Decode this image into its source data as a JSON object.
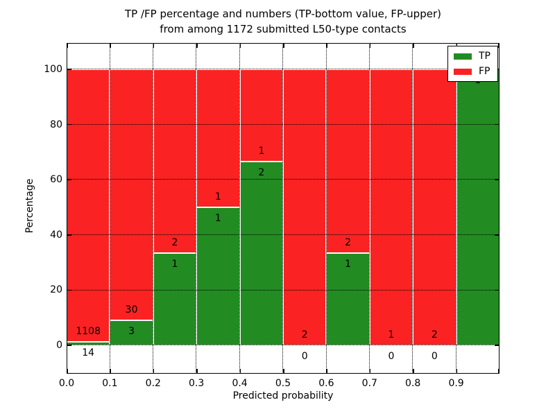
{
  "figure": {
    "title_line1": "TP /FP percentage and numbers (TP-bottom value, FP-upper)",
    "title_line2": "from among 1172 submitted L50-type contacts"
  },
  "chart_data": {
    "type": "bar",
    "stacked": true,
    "title": "TP /FP percentage and numbers (TP-bottom value, FP-upper) from among 1172 submitted L50-type contacts",
    "xlabel": "Predicted probability",
    "ylabel": "Percentage",
    "total_contacts": 1172,
    "grid": "dotted",
    "x_tick_labels": [
      "0.0",
      "0.1",
      "0.2",
      "0.3",
      "0.4",
      "0.5",
      "0.6",
      "0.7",
      "0.8",
      "0.9"
    ],
    "y_tick_values": [
      0,
      20,
      40,
      60,
      80,
      100
    ],
    "y_tick_labels": [
      "0",
      "20",
      "40",
      "60",
      "80",
      "100"
    ],
    "xlim": [
      0.0,
      1.0
    ],
    "ylim_pct": [
      0,
      100
    ],
    "series_colors": {
      "tp": "#228b22",
      "fp": "#fa2222"
    },
    "legend": {
      "position": "upper right",
      "items": [
        {
          "label": "TP",
          "color": "#228b22"
        },
        {
          "label": "FP",
          "color": "#fa2222"
        }
      ]
    },
    "bins": [
      {
        "x_range": [
          0.0,
          0.1
        ],
        "tp_count": 14,
        "fp_count": 1108,
        "tp_pct": 1.25,
        "fp_pct": 98.75,
        "tp_label": "14",
        "fp_label": "1108"
      },
      {
        "x_range": [
          0.1,
          0.2
        ],
        "tp_count": 3,
        "fp_count": 30,
        "tp_pct": 9.09,
        "fp_pct": 90.91,
        "tp_label": "3",
        "fp_label": "30"
      },
      {
        "x_range": [
          0.2,
          0.3
        ],
        "tp_count": 1,
        "fp_count": 2,
        "tp_pct": 33.33,
        "fp_pct": 66.67,
        "tp_label": "1",
        "fp_label": "2"
      },
      {
        "x_range": [
          0.3,
          0.4
        ],
        "tp_count": 1,
        "fp_count": 1,
        "tp_pct": 50.0,
        "fp_pct": 50.0,
        "tp_label": "1",
        "fp_label": "1"
      },
      {
        "x_range": [
          0.4,
          0.5
        ],
        "tp_count": 2,
        "fp_count": 1,
        "tp_pct": 66.67,
        "fp_pct": 33.33,
        "tp_label": "2",
        "fp_label": "1"
      },
      {
        "x_range": [
          0.5,
          0.6
        ],
        "tp_count": 0,
        "fp_count": 2,
        "tp_pct": 0.0,
        "fp_pct": 100.0,
        "tp_label": "0",
        "fp_label": "2"
      },
      {
        "x_range": [
          0.6,
          0.7
        ],
        "tp_count": 1,
        "fp_count": 2,
        "tp_pct": 33.33,
        "fp_pct": 66.67,
        "tp_label": "1",
        "fp_label": "2"
      },
      {
        "x_range": [
          0.7,
          0.8
        ],
        "tp_count": 0,
        "fp_count": 1,
        "tp_pct": 0.0,
        "fp_pct": 100.0,
        "tp_label": "0",
        "fp_label": "1"
      },
      {
        "x_range": [
          0.8,
          0.9
        ],
        "tp_count": 0,
        "fp_count": 2,
        "tp_pct": 0.0,
        "fp_pct": 100.0,
        "tp_label": "0",
        "fp_label": "2"
      },
      {
        "x_range": [
          0.9,
          1.0
        ],
        "tp_count": 1,
        "fp_count": 0,
        "tp_pct": 100.0,
        "fp_pct": 0.0,
        "tp_label": "1",
        "fp_label": null
      }
    ]
  }
}
